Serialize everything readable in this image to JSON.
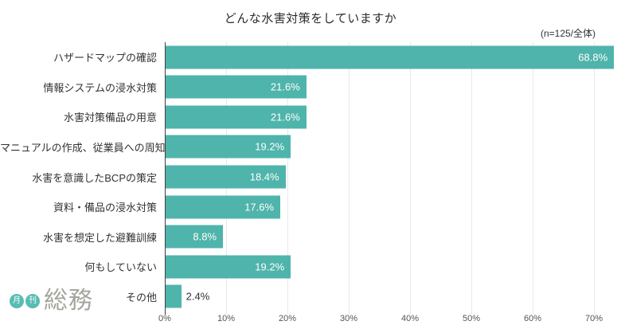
{
  "title": "どんな水害対策をしていますか",
  "sample_label": "(n=125/全体)",
  "chart_data": {
    "type": "bar",
    "orientation": "horizontal",
    "title": "どんな水害対策をしていますか",
    "subtitle": "(n=125/全体)",
    "categories": [
      "ハザードマップの確認",
      "情報システムの浸水対策",
      "水害対策備品の用意",
      "マニュアルの作成、従業員への周知",
      "水害を意識したBCPの策定",
      "資料・備品の浸水対策",
      "水害を想定した避難訓練",
      "何もしていない",
      "その他"
    ],
    "values": [
      68.8,
      21.6,
      21.6,
      19.2,
      18.4,
      17.6,
      8.8,
      19.2,
      2.4
    ],
    "value_labels": [
      "68.8%",
      "21.6%",
      "21.6%",
      "19.2%",
      "18.4%",
      "17.6%",
      "8.8%",
      "19.2%",
      "2.4%"
    ],
    "xlabel": "",
    "ylabel": "",
    "xlim": [
      0,
      70
    ],
    "x_ticks": [
      "0%",
      "10%",
      "20%",
      "30%",
      "40%",
      "50%",
      "60%",
      "70%"
    ],
    "grid": true,
    "legend": "none",
    "bar_color": "#4fb4ab",
    "value_label_color_inside": "#ffffff",
    "value_label_color_outside": "#333333"
  },
  "logo": {
    "circle1": "月",
    "circle2": "刊",
    "text": "総務",
    "circle_color": "#58bcb2",
    "text_color": "#a5a49c"
  }
}
